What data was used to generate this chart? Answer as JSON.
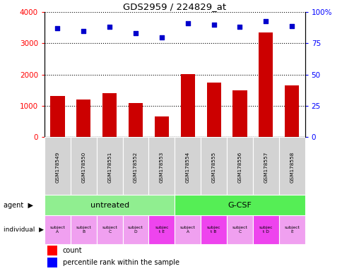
{
  "title": "GDS2959 / 224829_at",
  "samples": [
    "GSM178549",
    "GSM178550",
    "GSM178551",
    "GSM178552",
    "GSM178553",
    "GSM178554",
    "GSM178555",
    "GSM178556",
    "GSM178557",
    "GSM178558"
  ],
  "counts": [
    1320,
    1200,
    1400,
    1080,
    650,
    2020,
    1750,
    1500,
    3350,
    1650
  ],
  "percentiles": [
    87,
    85,
    88,
    83,
    80,
    91,
    90,
    88,
    93,
    89
  ],
  "agent_untreated_color": "#90ee90",
  "agent_gcsf_color": "#55ee55",
  "bar_color": "#cc0000",
  "dot_color": "#0000cc",
  "xlabels_bg": "#d0d0d0",
  "ylim_left": [
    0,
    4000
  ],
  "ylim_right": [
    0,
    100
  ],
  "yticks_left": [
    0,
    1000,
    2000,
    3000,
    4000
  ],
  "ytick_labels_right": [
    "0",
    "25",
    "50",
    "75",
    "100%"
  ],
  "indiv_colors": [
    "#f0a0f0",
    "#f0a0f0",
    "#f0a0f0",
    "#f0a0f0",
    "#ee44ee",
    "#f0a0f0",
    "#ee44ee",
    "#f0a0f0",
    "#ee44ee",
    "#f0a0f0"
  ],
  "indiv_labels": [
    "subject\nA",
    "subject\nB",
    "subject\nC",
    "subject\nD",
    "subjec\nt E",
    "subject\nA",
    "subjec\nt B",
    "subject\nC",
    "subjec\nt D",
    "subject\nE"
  ]
}
